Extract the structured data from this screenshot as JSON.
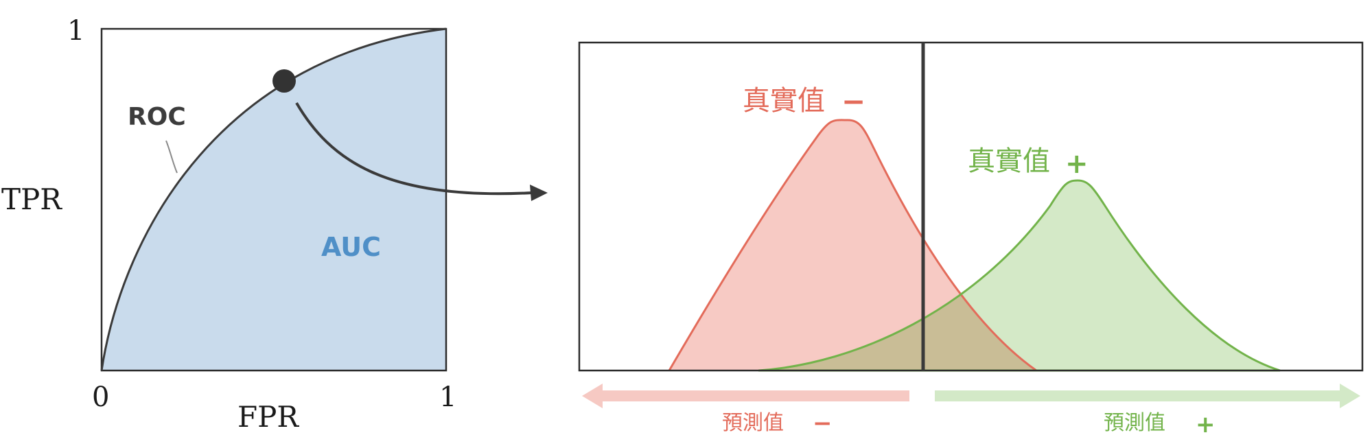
{
  "roc_panel": {
    "y_axis_label": "TPR",
    "x_axis_label": "FPR",
    "y_tick_top": "1",
    "x_tick_left": "0",
    "x_tick_right": "1",
    "curve_label": "ROC",
    "area_label": "AUC"
  },
  "distribution_panel": {
    "negative_class_label": "真實值",
    "negative_class_sign": "−",
    "positive_class_label": "真實值",
    "positive_class_sign": "+",
    "predicted_negative_label": "預測值",
    "predicted_negative_sign": "−",
    "predicted_positive_label": "預測值",
    "predicted_positive_sign": "+"
  },
  "colors": {
    "auc_fill": "#c9dbec",
    "auc_text": "#4f8fc7",
    "roc_line": "#3a3a3a",
    "negative": "#e36b5a",
    "negative_fill": "#f4b8b0",
    "positive": "#72b34a",
    "positive_fill": "#c5e1b4",
    "overlap_fill": "#c9bd96",
    "arrow_negative": "#f6c9c3",
    "arrow_positive": "#d3e9c7"
  }
}
